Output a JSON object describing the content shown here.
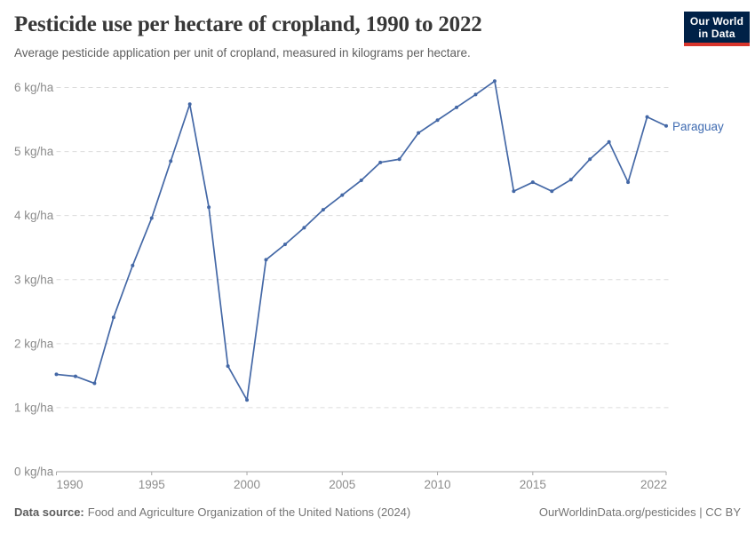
{
  "header": {
    "title": "Pesticide use per hectare of cropland, 1990 to 2022",
    "subtitle": "Average pesticide application per unit of cropland, measured in kilograms per hectare."
  },
  "logo": {
    "line1": "Our World",
    "line2": "in Data",
    "background_color": "#002147",
    "accent_color": "#d8352c"
  },
  "chart_data": {
    "type": "line",
    "title": "Pesticide use per hectare of cropland, 1990 to 2022",
    "unit": "kg/ha",
    "x": [
      1990,
      1991,
      1992,
      1993,
      1994,
      1995,
      1996,
      1997,
      1998,
      1999,
      2000,
      2001,
      2002,
      2003,
      2004,
      2005,
      2006,
      2007,
      2008,
      2009,
      2010,
      2011,
      2012,
      2013,
      2014,
      2015,
      2016,
      2017,
      2018,
      2019,
      2020,
      2021,
      2022
    ],
    "series": [
      {
        "name": "Paraguay",
        "values": [
          1.52,
          1.49,
          1.38,
          2.41,
          3.22,
          3.96,
          4.85,
          5.74,
          4.13,
          1.65,
          1.12,
          3.31,
          3.55,
          3.81,
          4.09,
          4.32,
          4.55,
          4.83,
          4.88,
          5.29,
          5.49,
          5.69,
          5.89,
          6.1,
          4.38,
          4.52,
          4.38,
          4.56,
          4.88,
          5.15,
          4.52,
          5.54,
          5.4
        ]
      }
    ],
    "x_range": [
      1990,
      2022
    ],
    "y_range": [
      0,
      6
    ],
    "x_ticks": [
      1990,
      1995,
      2000,
      2005,
      2010,
      2015,
      2022
    ],
    "y_ticks": [
      {
        "value": 0,
        "label": "0 kg/ha"
      },
      {
        "value": 1,
        "label": "1 kg/ha"
      },
      {
        "value": 2,
        "label": "2 kg/ha"
      },
      {
        "value": 3,
        "label": "3 kg/ha"
      },
      {
        "value": 4,
        "label": "4 kg/ha"
      },
      {
        "value": 5,
        "label": "5 kg/ha"
      },
      {
        "value": 6,
        "label": "6 kg/ha"
      }
    ],
    "grid": true,
    "legend_position": "end-of-line",
    "line_color": "#4468a6",
    "label_color": "#3f6bb1",
    "grid_color": "#dcdcdc",
    "axis_color": "#a7a7a7",
    "tick_label_color": "#8c8c8c"
  },
  "footer": {
    "source_label": "Data source:",
    "source_text": "Food and Agriculture Organization of the United Nations (2024)",
    "credit": "OurWorldinData.org/pesticides | CC BY"
  }
}
